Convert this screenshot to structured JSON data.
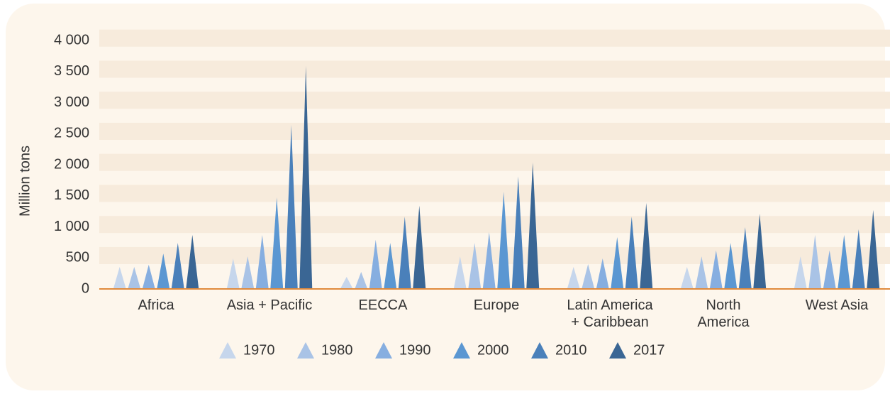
{
  "chart_data": {
    "type": "bar",
    "y_label": "Million  tons",
    "categories": [
      "Africa",
      "Asia + Pacific",
      "EECCA",
      "Europe",
      "Latin America\n+ Caribbean",
      "North\nAmerica",
      "West Asia"
    ],
    "series": [
      {
        "name": "1970",
        "color": "#c6d6ec",
        "values": [
          354,
          490,
          195,
          525,
          354,
          354,
          525
        ]
      },
      {
        "name": "1980",
        "color": "#a9c3e6",
        "values": [
          354,
          525,
          275,
          740,
          400,
          525,
          870
        ]
      },
      {
        "name": "1990",
        "color": "#86aee0",
        "values": [
          390,
          870,
          790,
          915,
          490,
          620,
          620
        ]
      },
      {
        "name": "2000",
        "color": "#5b97d2",
        "values": [
          570,
          1475,
          740,
          1565,
          835,
          740,
          870
        ]
      },
      {
        "name": "2010",
        "color": "#4a80ba",
        "values": [
          740,
          2640,
          1165,
          1815,
          1165,
          995,
          960
        ]
      },
      {
        "name": "2017",
        "color": "#3a6694",
        "values": [
          870,
          3590,
          1340,
          2035,
          1385,
          1210,
          1270
        ]
      }
    ],
    "ylim": [
      0,
      4000
    ],
    "yticks": [
      0,
      500,
      {
        "value": 1000,
        "label": "1 000"
      },
      {
        "value": 1500,
        "label": "1 500"
      },
      {
        "value": 2000,
        "label": "2 000"
      },
      {
        "value": 2500,
        "label": "2 500"
      },
      {
        "value": 3000,
        "label": "3 000"
      },
      {
        "value": 3500,
        "label": "3 500"
      },
      {
        "value": 4000,
        "label": "4 000"
      }
    ],
    "grid": true
  }
}
